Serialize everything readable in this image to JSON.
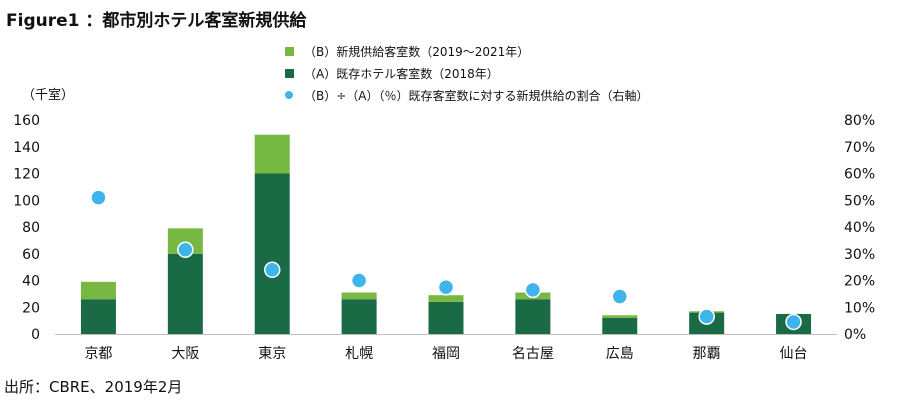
{
  "title": "Figure1 ：都市別ホテル客室新規供給",
  "source": "出所：CBRE、2019年2月",
  "colors": {
    "new": "#77b843",
    "existing": "#1a6b45",
    "ratio": "#3fb4ec"
  },
  "chart_data": {
    "type": "bar",
    "categories": [
      "京都",
      "大阪",
      "東京",
      "札幌",
      "福岡",
      "名古屋",
      "広島",
      "那覇",
      "仙台"
    ],
    "series": [
      {
        "name": "（A）既存ホテル客室数（2018年）",
        "values": [
          26,
          60,
          120,
          26,
          24,
          26,
          12,
          16,
          15
        ],
        "axis": "left",
        "kind": "stacked-bar"
      },
      {
        "name": "（B）新規供給客室数（2019～2021年）",
        "values": [
          13,
          19,
          29,
          5,
          5,
          5,
          2,
          1,
          0
        ],
        "axis": "left",
        "kind": "stacked-bar"
      },
      {
        "name": "（B）÷（A）（％）既存客室数に対する新規供給の割合（右軸）",
        "values": [
          51,
          31.5,
          24,
          20,
          17.5,
          16.5,
          14,
          6.5,
          4.5
        ],
        "axis": "right",
        "kind": "scatter"
      }
    ],
    "ylabel": "（千室）",
    "ylim": [
      0,
      160
    ],
    "yticks": [
      "0",
      "20",
      "40",
      "60",
      "80",
      "100",
      "120",
      "140",
      "160"
    ],
    "y2lim": [
      0,
      80
    ],
    "y2ticks": [
      "0%",
      "10%",
      "20%",
      "30%",
      "40%",
      "50%",
      "60%",
      "70%",
      "80%"
    ],
    "grid": false,
    "legend_position": "top-center"
  }
}
